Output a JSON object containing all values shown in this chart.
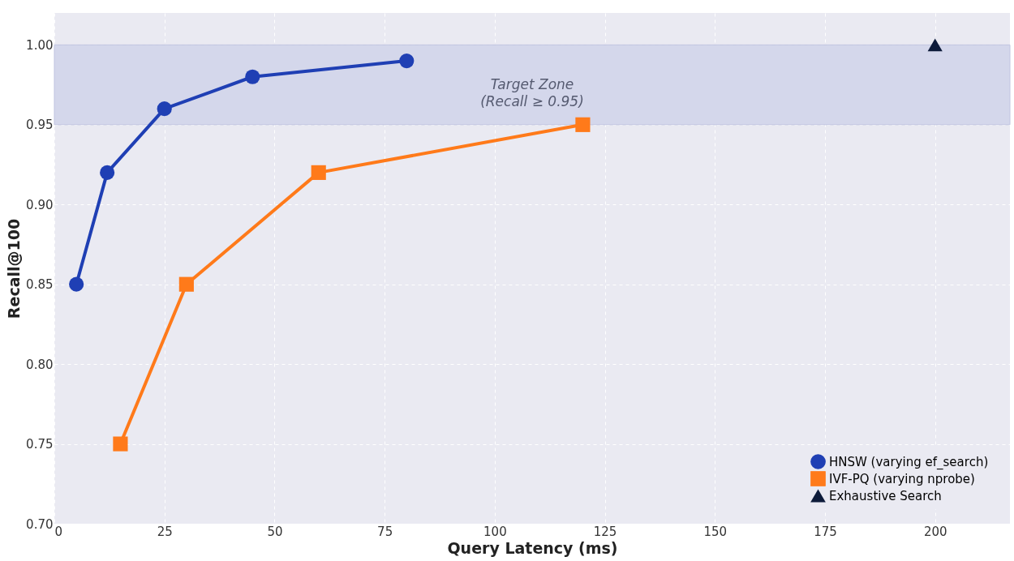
{
  "chart_data": {
    "type": "line",
    "xlabel": "Query Latency (ms)",
    "ylabel": "Recall@100",
    "xlim": [
      0,
      217
    ],
    "xticks": [
      0,
      25,
      50,
      75,
      100,
      125,
      150,
      175,
      200
    ],
    "ylim": [
      0.7,
      1.02
    ],
    "yticks": [
      {
        "value": 0.7,
        "label": "0.70"
      },
      0.75,
      {
        "value": 0.8,
        "label": "0.80"
      },
      0.85,
      {
        "value": 0.9,
        "label": "0.90"
      },
      0.95,
      {
        "value": 1.0,
        "label": "1.00"
      }
    ],
    "grid": true,
    "legend": "bottom right",
    "line_style": "solid",
    "series": [
      {
        "name": "HNSW (varying ef_search)",
        "color": "#1f3fb4",
        "marker": "circle",
        "x": [
          5,
          12,
          25,
          45,
          80
        ],
        "values": [
          0.85,
          0.92,
          0.96,
          0.98,
          0.99
        ]
      },
      {
        "name": "IVF-PQ (varying nprobe)",
        "color": "#ff7a1a",
        "marker": "square",
        "x": [
          15,
          30,
          60,
          120
        ],
        "values": [
          0.75,
          0.85,
          0.92,
          0.95
        ]
      },
      {
        "name": "Exhaustive Search",
        "type": "scatter",
        "color": "#0d1b3a",
        "marker": "triangle",
        "x": [
          200
        ],
        "values": [
          1.0
        ]
      }
    ],
    "bands": [
      {
        "axis": "y",
        "from": 0.95,
        "to": 1.0,
        "color": "#d4d7eb",
        "label": "Target Zone\n(Recall ≥ 0.95)"
      }
    ]
  }
}
